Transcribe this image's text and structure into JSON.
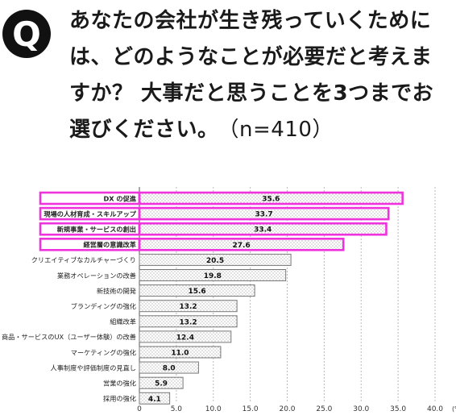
{
  "header": {
    "badge": "Q",
    "question": "あなたの会社が生き残っていくためには、どのようなことが必要だと考えますか？ 大事だと思うことを3つまでお選びください。",
    "sample": "（n=410）"
  },
  "chart_data": {
    "type": "bar",
    "orientation": "horizontal",
    "categories": [
      "DX の促進",
      "現場の人材育成・スキルアップ",
      "新規事業・サービスの創出",
      "経営層の意識改革",
      "クリエイティブなカルチャーづくり",
      "業務オペレーションの改善",
      "新技術の開発",
      "ブランディングの強化",
      "組織改革",
      "商品・サービスのUX（ユーザー体験）の改善",
      "マーケティングの強化",
      "人事制度や評価制度の見直し",
      "営業の強化",
      "採用の強化"
    ],
    "values": [
      35.6,
      33.7,
      33.4,
      27.6,
      20.5,
      19.8,
      15.6,
      13.2,
      13.2,
      12.4,
      11.0,
      8.0,
      5.9,
      4.1
    ],
    "value_labels": [
      "35.6",
      "33.7",
      "33.4",
      "27.6",
      "20.5",
      "19.8",
      "15.6",
      "13.2",
      "13.2",
      "12.4",
      "11.0",
      "8.0",
      "5.9",
      "4.1"
    ],
    "highlighted_count": 4,
    "xlim": [
      0,
      40
    ],
    "xticks": [
      "0",
      "5.0",
      "10.0",
      "15.0",
      "20.0",
      "25.0",
      "30.0",
      "35.0",
      "40.0"
    ],
    "unit": "(%)",
    "grid": "vertical dashed",
    "colors": {
      "highlight": "#ee33dd",
      "bar_border": "#777777",
      "dots": "#999999",
      "grid": "#bbbbbb"
    }
  }
}
